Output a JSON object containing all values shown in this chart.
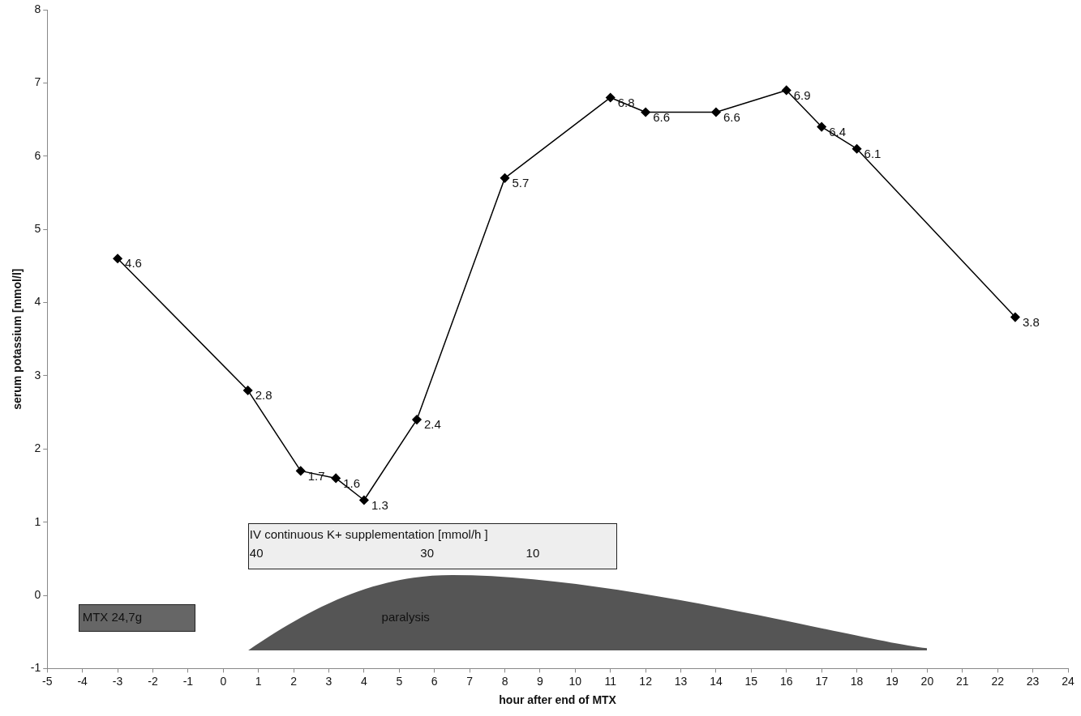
{
  "chart_data": {
    "type": "line",
    "xlabel": "hour after end of MTX",
    "ylabel": "serum potassium [mmol/l]",
    "x": [
      -3,
      0.7,
      2.2,
      3.2,
      4,
      5.5,
      8,
      11,
      12,
      14,
      16,
      17,
      18,
      22.5
    ],
    "series": [
      {
        "color": "#000000",
        "values": [
          4.6,
          2.8,
          1.7,
          1.6,
          1.3,
          2.4,
          5.7,
          6.8,
          6.6,
          6.6,
          6.9,
          6.4,
          6.1,
          3.8
        ]
      }
    ],
    "xlim": [
      -5,
      24
    ],
    "xticks": [
      -5,
      -4,
      -3,
      -2,
      -1,
      0,
      1,
      2,
      3,
      4,
      5,
      6,
      7,
      8,
      9,
      10,
      11,
      12,
      13,
      14,
      15,
      16,
      17,
      18,
      19,
      20,
      21,
      22,
      23,
      24
    ],
    "ylim": [
      -1,
      8
    ],
    "yticks": [
      -1,
      0,
      1,
      2,
      3,
      4,
      5,
      6,
      7,
      8
    ],
    "grid": false,
    "legend": false,
    "marker": "diamond",
    "line_style": "solid",
    "data_labels": true,
    "annotations": [
      "IV continuous K+ supplementation [mmol/h ]",
      "40",
      "30",
      "10",
      "MTX 24,7g",
      "paralysis"
    ]
  }
}
